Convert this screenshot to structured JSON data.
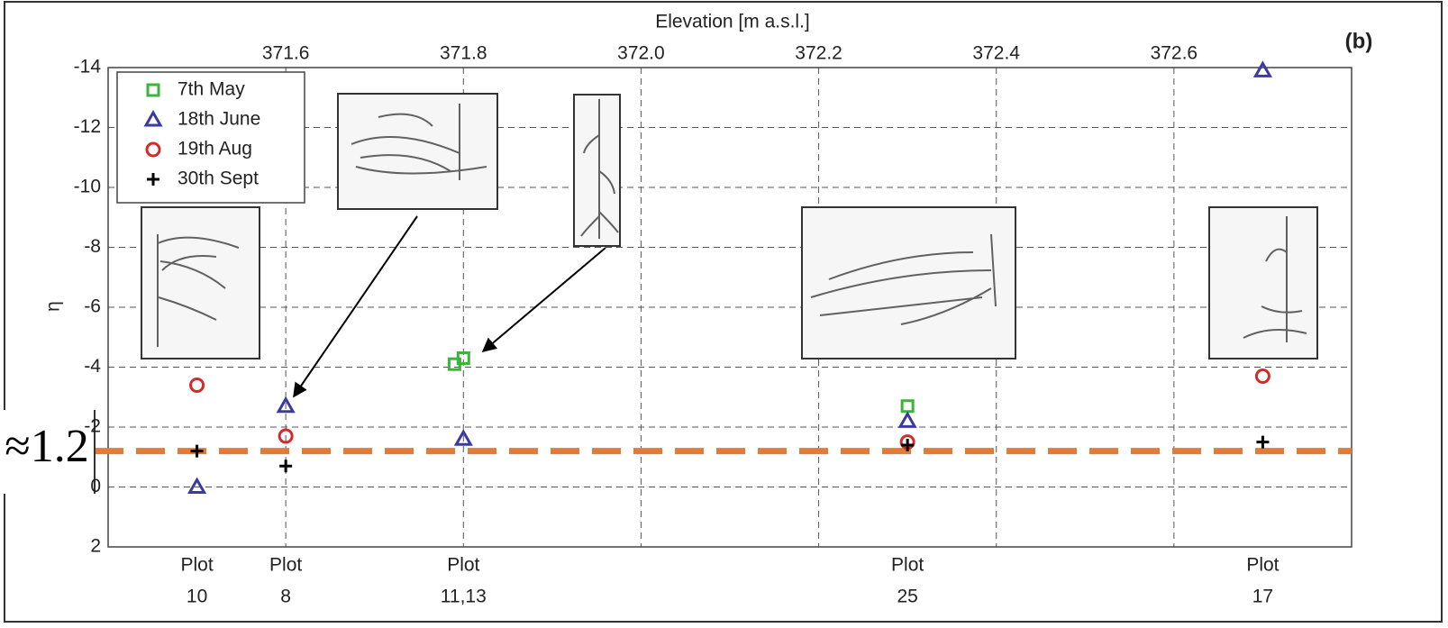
{
  "chart_data": {
    "type": "scatter",
    "title": "(b)",
    "x_label": "Elevation [m a.s.l.]",
    "y_label": "η",
    "xlim": [
      371.4,
      372.8
    ],
    "xticks": [
      371.6,
      371.8,
      {
        "value": 372,
        "label": "372.0"
      },
      372.2,
      372.4,
      372.6
    ],
    "ylim": [
      -14,
      2
    ],
    "y_reversed": true,
    "yticks": [
      -14,
      -12,
      -10,
      -8,
      -6,
      -4,
      -2,
      0,
      2
    ],
    "grid": true,
    "plots": [
      {
        "x": 371.5,
        "label": [
          "Plot",
          "10"
        ]
      },
      {
        "x": 371.6,
        "label": [
          "Plot",
          "8"
        ]
      },
      {
        "x": 371.8,
        "label": [
          "Plot",
          "11,13"
        ]
      },
      {
        "x": 372.3,
        "label": [
          "Plot",
          "25"
        ]
      },
      {
        "x": 372.7,
        "label": [
          "Plot",
          "17"
        ]
      }
    ],
    "legend": "upper left",
    "series": [
      {
        "name": "7th May",
        "color": "#3cb43c",
        "marker": "square",
        "x": [
          371.79,
          371.8,
          372.3
        ],
        "values": [
          -4.1,
          -4.3,
          -2.7
        ]
      },
      {
        "name": "18th June",
        "color": "#3a3aa0",
        "marker": "triangle",
        "x": [
          371.5,
          371.6,
          371.8,
          372.3,
          372.7
        ],
        "values": [
          0,
          -2.7,
          -1.6,
          -2.2,
          -13.9
        ]
      },
      {
        "name": "19th Aug",
        "color": "#d42a2a",
        "marker": "circle",
        "x": [
          371.5,
          371.6,
          372.3,
          372.7
        ],
        "values": [
          -3.4,
          -1.7,
          -1.5,
          -3.7
        ]
      },
      {
        "name": "30th Sept",
        "color": "#000000",
        "marker": "plus",
        "x": [
          371.5,
          371.6,
          372.3,
          372.7
        ],
        "values": [
          -1.2,
          -0.7,
          -1.4,
          -1.5
        ]
      }
    ],
    "reference_line": {
      "value": -1.2,
      "color": "#e07b39",
      "label": "≈1.2"
    }
  }
}
